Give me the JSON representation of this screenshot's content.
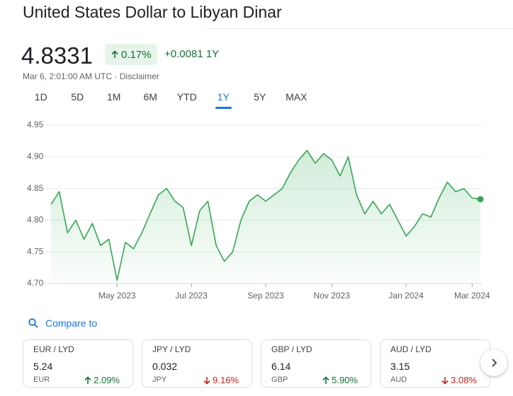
{
  "header": {
    "title": "United States Dollar to Libyan Dinar"
  },
  "quote": {
    "price": "4.8331",
    "change_pct": "0.17%",
    "change_abs": "+0.0081",
    "period": "1Y",
    "timestamp": "Mar 6, 2:01:00 AM UTC",
    "separator": "·",
    "disclaimer": "Disclaimer"
  },
  "tabs": {
    "items": [
      "1D",
      "5D",
      "1M",
      "6M",
      "YTD",
      "1Y",
      "5Y",
      "MAX"
    ],
    "active": 5
  },
  "chart_data": {
    "type": "line",
    "color": "#34a853",
    "grid": true,
    "categories": [
      null,
      null,
      null,
      null,
      null,
      null,
      null,
      null,
      "May 2023",
      null,
      null,
      null,
      null,
      null,
      null,
      null,
      null,
      "Jul 2023",
      null,
      null,
      null,
      null,
      null,
      null,
      null,
      null,
      "Sep 2023",
      null,
      null,
      null,
      null,
      null,
      null,
      null,
      "Nov 2023",
      null,
      null,
      null,
      null,
      null,
      null,
      null,
      null,
      "Jan 2024",
      null,
      null,
      null,
      null,
      null,
      null,
      null,
      "Mar 2024",
      null
    ],
    "values": [
      4.825,
      4.845,
      4.78,
      4.8,
      4.77,
      4.795,
      4.76,
      4.77,
      4.705,
      4.765,
      4.755,
      4.78,
      4.81,
      4.84,
      4.85,
      4.83,
      4.82,
      4.76,
      4.815,
      4.83,
      4.76,
      4.735,
      4.75,
      4.8,
      4.83,
      4.84,
      4.83,
      4.84,
      4.85,
      4.875,
      4.895,
      4.91,
      4.89,
      4.905,
      4.895,
      4.87,
      4.9,
      4.84,
      4.81,
      4.83,
      4.81,
      4.825,
      4.8,
      4.775,
      4.79,
      4.81,
      4.805,
      4.835,
      4.86,
      4.845,
      4.85,
      4.835,
      4.8331
    ],
    "ylim": [
      4.7,
      4.95
    ],
    "yticks": [
      {
        "value": 4.7,
        "label": "4.70"
      },
      4.75,
      {
        "value": 4.8,
        "label": "4.80"
      },
      4.85,
      {
        "value": 4.9,
        "label": "4.90"
      },
      4.95
    ]
  },
  "compare": {
    "label": "Compare to",
    "cards": [
      {
        "pair": "EUR / LYD",
        "rate": "5.24",
        "code": "EUR",
        "change": "2.09%",
        "direction": "up"
      },
      {
        "pair": "JPY / LYD",
        "rate": "0.032",
        "code": "JPY",
        "change": "9.16%",
        "direction": "down"
      },
      {
        "pair": "GBP / LYD",
        "rate": "6.14",
        "code": "GBP",
        "change": "5.90%",
        "direction": "up"
      },
      {
        "pair": "AUD / LYD",
        "rate": "3.15",
        "code": "AUD",
        "change": "3.08%",
        "direction": "down"
      }
    ]
  }
}
